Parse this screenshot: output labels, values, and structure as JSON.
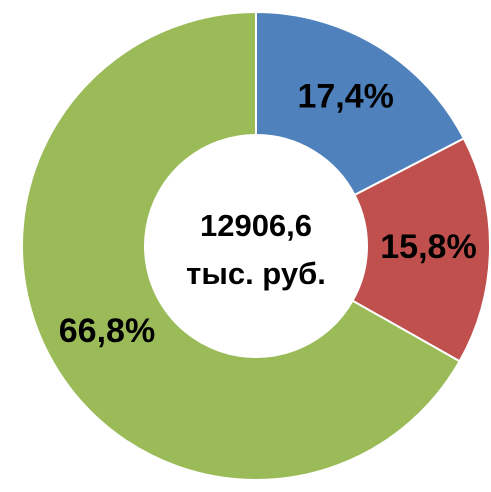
{
  "chart_data": {
    "type": "donut",
    "center_text": [
      "12906,6",
      "тыс. руб."
    ],
    "values": [
      17.4,
      15.8,
      66.8
    ],
    "value_labels": [
      "17,4%",
      "15,8%",
      "66,8%"
    ],
    "colors": [
      "#4f81bd",
      "#c0504d",
      "#9bbb59"
    ]
  }
}
